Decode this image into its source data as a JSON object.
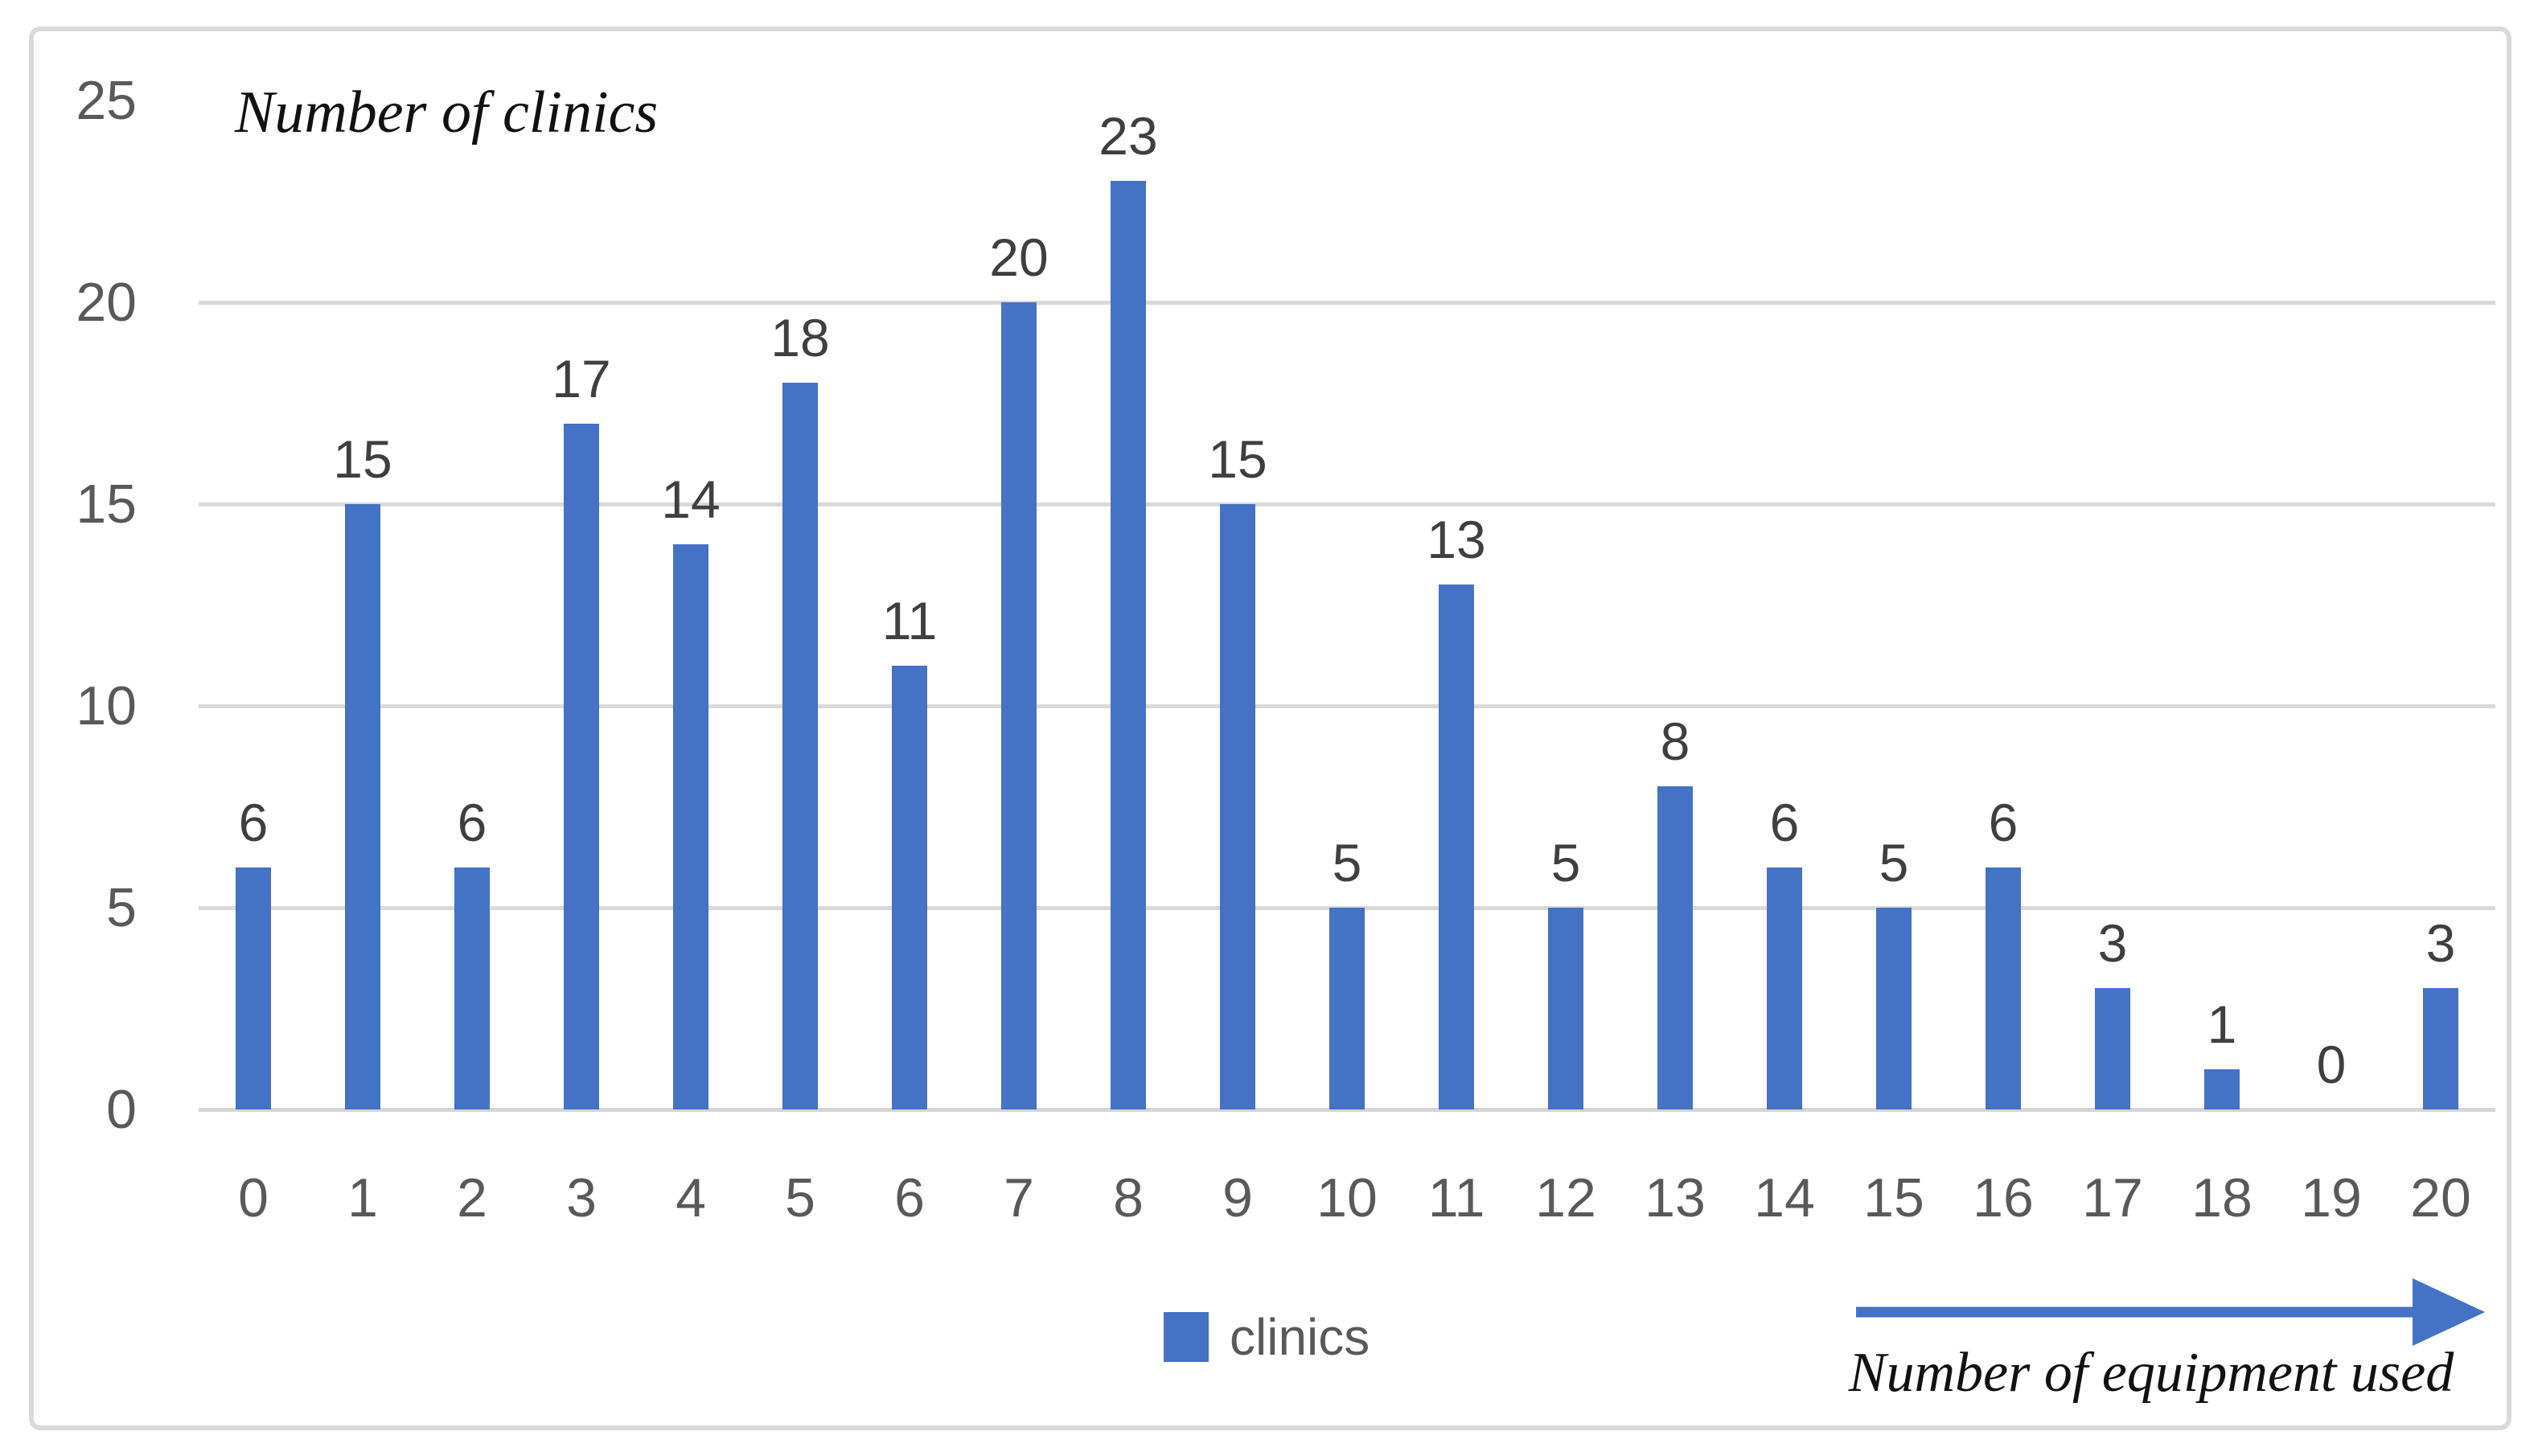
{
  "chart_data": {
    "type": "bar",
    "title": "Number of clinics",
    "x_axis_title": "Number of equipment used",
    "legend_label": "clinics",
    "legend_position": "bottom-center",
    "categories": [
      "0",
      "1",
      "2",
      "3",
      "4",
      "5",
      "6",
      "7",
      "8",
      "9",
      "10",
      "11",
      "12",
      "13",
      "14",
      "15",
      "16",
      "17",
      "18",
      "19",
      "20"
    ],
    "values": [
      6,
      15,
      6,
      17,
      14,
      18,
      11,
      20,
      23,
      15,
      5,
      13,
      5,
      8,
      6,
      5,
      6,
      3,
      1,
      0,
      3
    ],
    "y_ticks": [
      0,
      5,
      10,
      15,
      20,
      25
    ],
    "ylim": [
      0,
      25
    ],
    "grid": "horizontal gridlines at 5,10,15,20",
    "data_labels": "above each bar"
  },
  "colors": {
    "bar": "#4472c4",
    "legend_swatch": "#4472c4",
    "arrow": "#4472c4",
    "gridline": "#d9d9d9",
    "axis_line": "#d6d6d6",
    "tick_text": "#595959",
    "data_label_text": "#3f3f3f",
    "title_text": "#111111",
    "frame_border": "#d9d9d9",
    "background": "#ffffff"
  }
}
